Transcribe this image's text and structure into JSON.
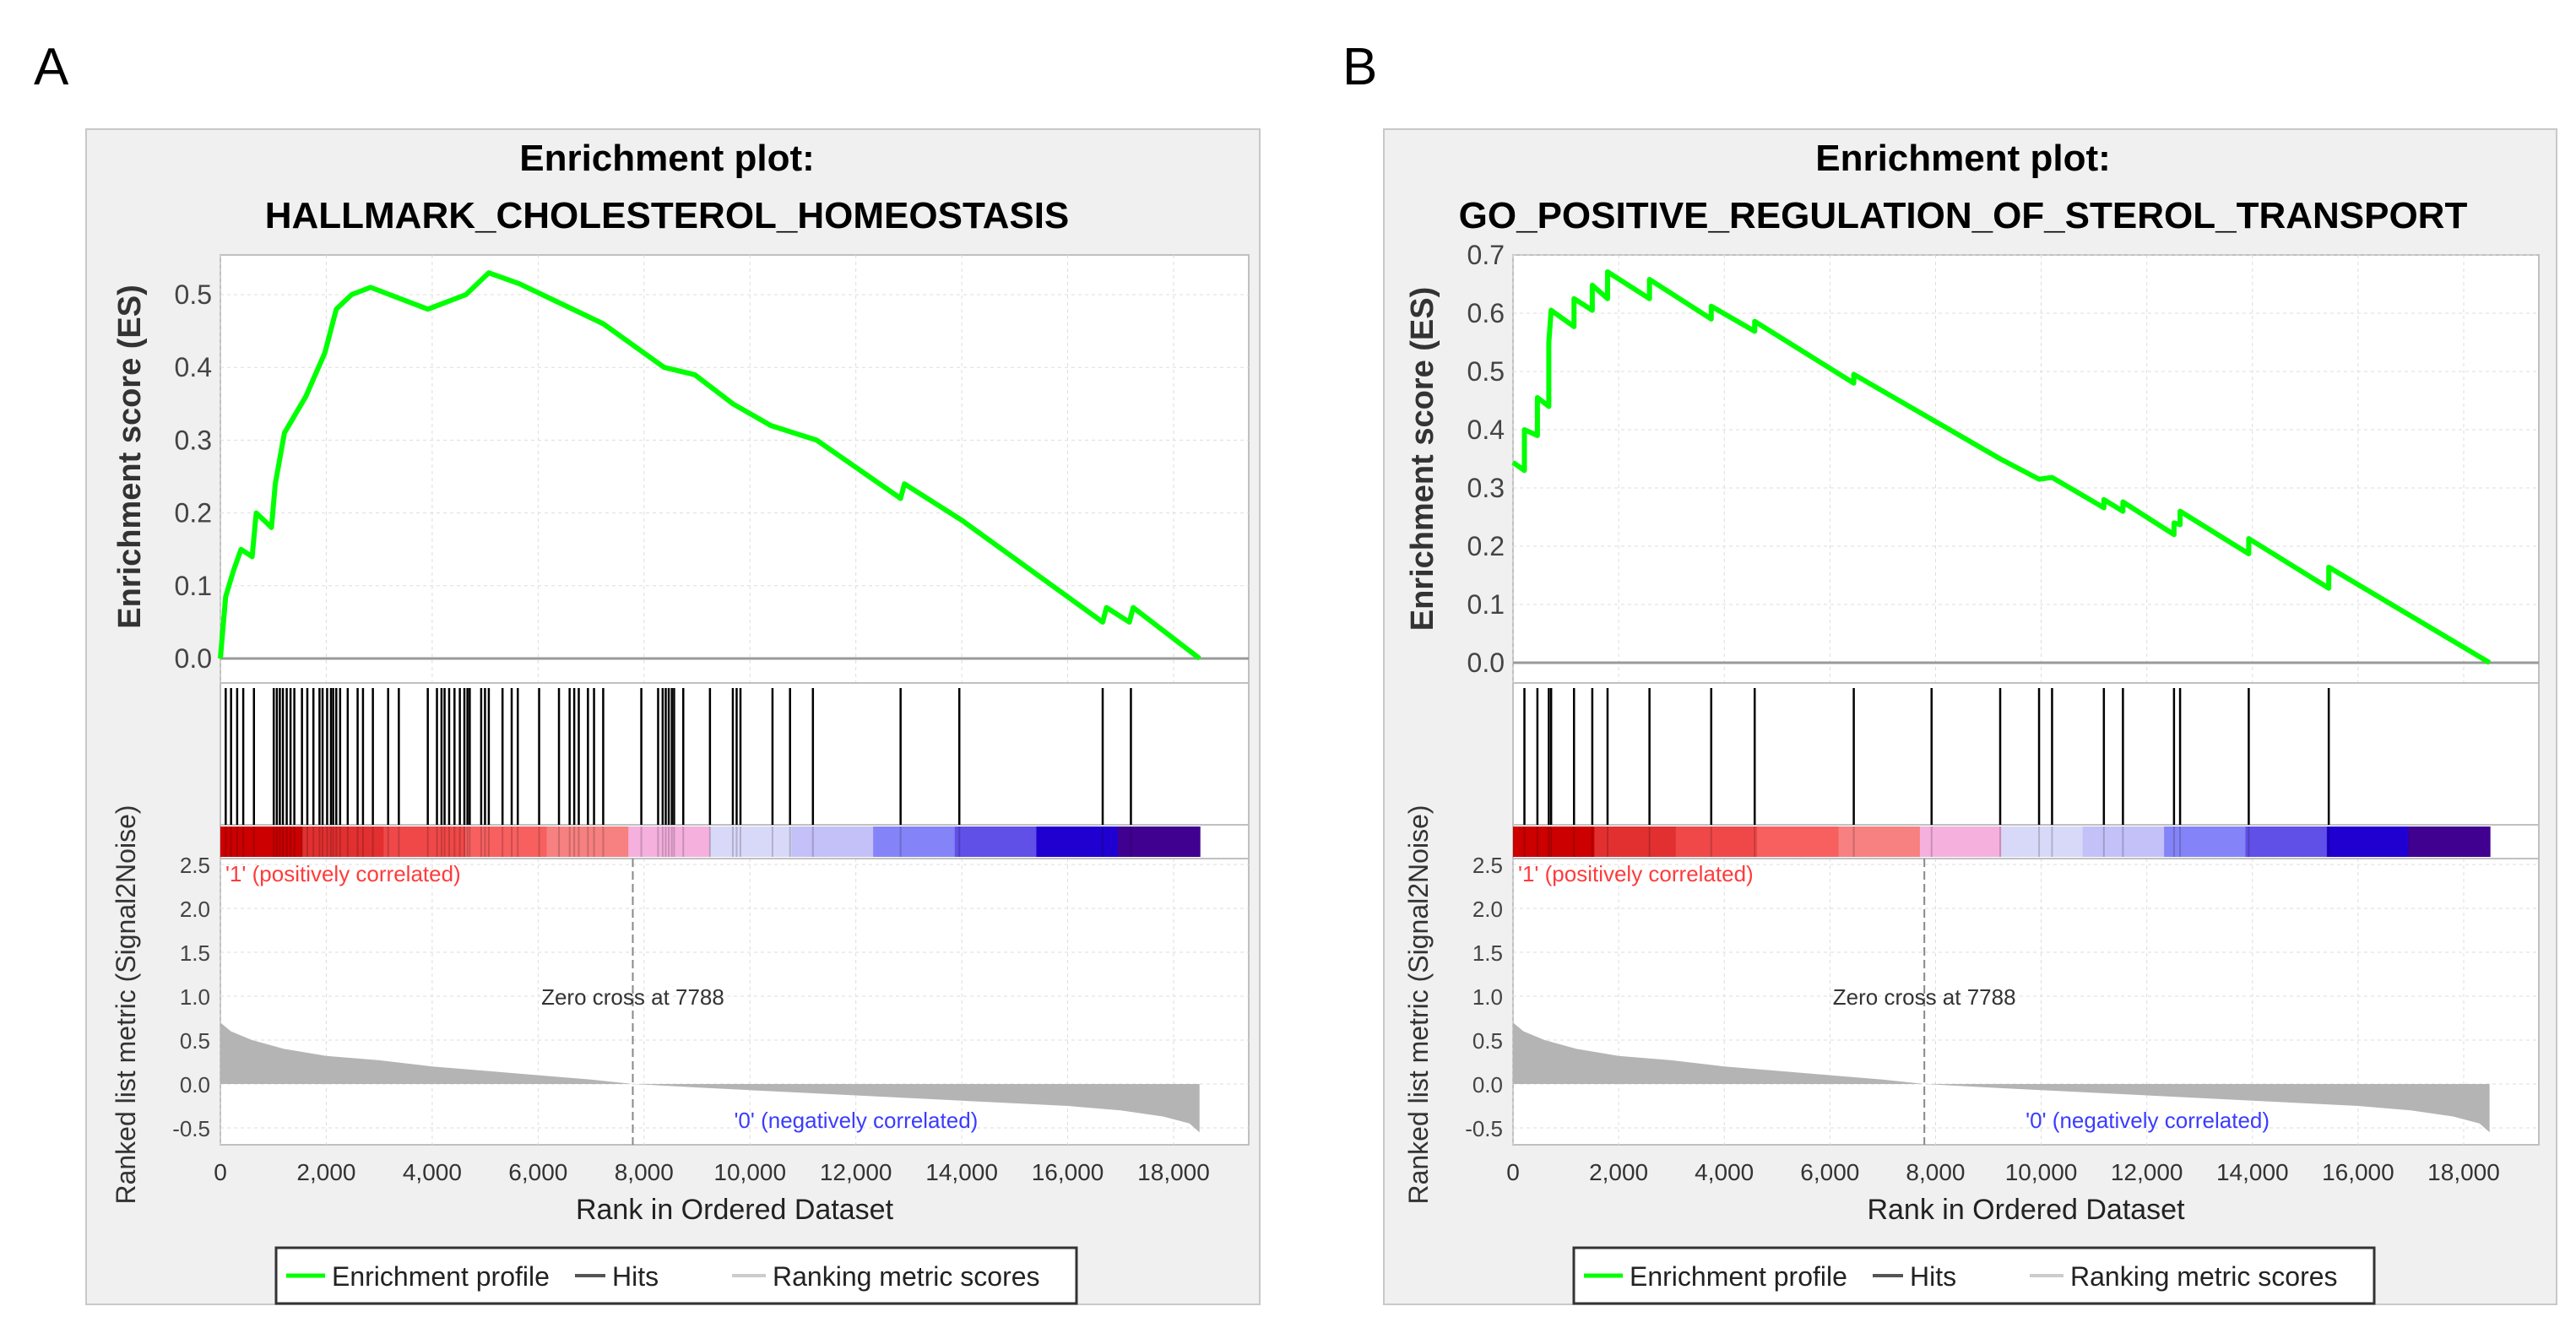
{
  "panels": [
    {
      "label": "A",
      "title_line1": "Enrichment plot:",
      "title_line2": "HALLMARK_CHOLESTEROL_HOMEOSTASIS",
      "legend": {
        "profile": "Enrichment profile",
        "hits": "Hits",
        "ranking": "Ranking metric scores"
      },
      "chart_data": {
        "type": "line",
        "title": "Enrichment plot: HALLMARK_CHOLESTEROL_HOMEOSTASIS",
        "xlabel": "Rank in Ordered Dataset",
        "ylabel_es": "Enrichment score (ES)",
        "ylabel_metric": "Ranked list metric (Signal2Noise)",
        "xlim": [
          0,
          19500
        ],
        "x_ticks": [
          "0",
          "2,000",
          "4,000",
          "6,000",
          "8,000",
          "10,000",
          "12,000",
          "14,000",
          "16,000",
          "18,000"
        ],
        "x_tick_values": [
          0,
          2000,
          4000,
          6000,
          8000,
          10000,
          12000,
          14000,
          16000,
          18000
        ],
        "es_ylim": [
          0,
          0.555
        ],
        "es_ticks": [
          "0.0",
          "0.1",
          "0.2",
          "0.3",
          "0.4",
          "0.5"
        ],
        "es_tick_values": [
          0,
          0.1,
          0.2,
          0.3,
          0.4,
          0.5
        ],
        "metric_ylim": [
          -0.6,
          2.6
        ],
        "metric_ticks": [
          "2.5",
          "2.0",
          "1.5",
          "1.0",
          "0.5",
          "0.0",
          "-0.5"
        ],
        "metric_tick_values": [
          2.5,
          2.0,
          1.5,
          1.0,
          0.5,
          0.0,
          -0.5
        ],
        "pos_label": "'1' (positively correlated)",
        "neg_label": "'0' (negatively correlated)",
        "zero_cross_label": "Zero cross at 7788",
        "zero_cross": 7788,
        "n_genes": 18490,
        "enrichment_profile": [
          [
            0,
            0
          ],
          [
            100,
            0.085
          ],
          [
            245,
            0.12
          ],
          [
            390,
            0.15
          ],
          [
            600,
            0.14
          ],
          [
            677,
            0.2
          ],
          [
            965,
            0.18
          ],
          [
            1037,
            0.24
          ],
          [
            1210,
            0.31
          ],
          [
            1613,
            0.36
          ],
          [
            1973,
            0.42
          ],
          [
            2189,
            0.48
          ],
          [
            2477,
            0.5
          ],
          [
            2837,
            0.51
          ],
          [
            3197,
            0.5
          ],
          [
            3917,
            0.48
          ],
          [
            4637,
            0.5
          ],
          [
            5069,
            0.53
          ],
          [
            5645,
            0.515
          ],
          [
            6077,
            0.5
          ],
          [
            7229,
            0.46
          ],
          [
            8381,
            0.4
          ],
          [
            8957,
            0.39
          ],
          [
            9677,
            0.35
          ],
          [
            10397,
            0.32
          ],
          [
            11261,
            0.3
          ],
          [
            12845,
            0.22
          ],
          [
            12917,
            0.24
          ],
          [
            14000,
            0.19
          ],
          [
            16661,
            0.05
          ],
          [
            16733,
            0.07
          ],
          [
            17165,
            0.05
          ],
          [
            17237,
            0.07
          ],
          [
            18490,
            0
          ]
        ],
        "hits": [
          101,
          202,
          317,
          432,
          634,
          1008,
          1066,
          1123,
          1181,
          1253,
          1325,
          1397,
          1541,
          1642,
          1757,
          1872,
          1930,
          2016,
          2088,
          2131,
          2189,
          2261,
          2405,
          2592,
          2693,
          2880,
          3168,
          3370,
          3917,
          4090,
          4176,
          4234,
          4320,
          4421,
          4522,
          4608,
          4666,
          4709,
          4925,
          4997,
          5069,
          5328,
          5501,
          5616,
          6019,
          6394,
          6595,
          6682,
          6768,
          6941,
          7056,
          7229,
          7949,
          8266,
          8352,
          8410,
          8467,
          8525,
          8568,
          8741,
          9245,
          9677,
          9749,
          9821,
          10426,
          10757,
          11189,
          12845,
          13954,
          16661,
          17194
        ],
        "ranked_metric": [
          [
            0,
            0.7
          ],
          [
            200,
            0.6
          ],
          [
            600,
            0.5
          ],
          [
            1200,
            0.4
          ],
          [
            2000,
            0.32
          ],
          [
            3000,
            0.27
          ],
          [
            4000,
            0.2
          ],
          [
            5000,
            0.15
          ],
          [
            6000,
            0.1
          ],
          [
            7000,
            0.05
          ],
          [
            7788,
            0
          ],
          [
            9000,
            -0.04
          ],
          [
            10000,
            -0.07
          ],
          [
            11000,
            -0.1
          ],
          [
            12000,
            -0.13
          ],
          [
            13000,
            -0.16
          ],
          [
            14000,
            -0.19
          ],
          [
            15000,
            -0.22
          ],
          [
            16000,
            -0.25
          ],
          [
            17000,
            -0.3
          ],
          [
            17800,
            -0.37
          ],
          [
            18300,
            -0.45
          ],
          [
            18490,
            -0.55
          ]
        ]
      }
    },
    {
      "label": "B",
      "title_line1": "Enrichment plot:",
      "title_line2": "GO_POSITIVE_REGULATION_OF_STEROL_TRANSPORT",
      "legend": {
        "profile": "Enrichment profile",
        "hits": "Hits",
        "ranking": "Ranking metric scores"
      },
      "chart_data": {
        "type": "line",
        "title": "Enrichment plot: GO_POSITIVE_REGULATION_OF_STEROL_TRANSPORT",
        "xlabel": "Rank in Ordered Dataset",
        "ylabel_es": "Enrichment score (ES)",
        "ylabel_metric": "Ranked list metric (Signal2Noise)",
        "xlim": [
          0,
          19500
        ],
        "x_ticks": [
          "0",
          "2,000",
          "4,000",
          "6,000",
          "8,000",
          "10,000",
          "12,000",
          "14,000",
          "16,000",
          "18,000"
        ],
        "x_tick_values": [
          0,
          2000,
          4000,
          6000,
          8000,
          10000,
          12000,
          14000,
          16000,
          18000
        ],
        "es_ylim": [
          0,
          0.7
        ],
        "es_ticks": [
          "0.0",
          "0.1",
          "0.2",
          "0.3",
          "0.4",
          "0.5",
          "0.6",
          "0.7"
        ],
        "es_tick_values": [
          0,
          0.1,
          0.2,
          0.3,
          0.4,
          0.5,
          0.6,
          0.7
        ],
        "metric_ylim": [
          -0.6,
          2.6
        ],
        "metric_ticks": [
          "2.5",
          "2.0",
          "1.5",
          "1.0",
          "0.5",
          "0.0",
          "-0.5"
        ],
        "metric_tick_values": [
          2.5,
          2.0,
          1.5,
          1.0,
          0.5,
          0.0,
          -0.5
        ],
        "pos_label": "'1' (positively correlated)",
        "neg_label": "'0' (negatively correlated)",
        "zero_cross_label": "Zero cross at 7788",
        "zero_cross": 7788,
        "n_genes": 18490,
        "enrichment_profile": [
          [
            0,
            0.344
          ],
          [
            216,
            0.33
          ],
          [
            216,
            0.4
          ],
          [
            462,
            0.39
          ],
          [
            462,
            0.455
          ],
          [
            678,
            0.44
          ],
          [
            678,
            0.55
          ],
          [
            722,
            0.605
          ],
          [
            1155,
            0.577
          ],
          [
            1155,
            0.625
          ],
          [
            1501,
            0.605
          ],
          [
            1501,
            0.648
          ],
          [
            1790,
            0.625
          ],
          [
            1790,
            0.671
          ],
          [
            2584,
            0.625
          ],
          [
            2584,
            0.658
          ],
          [
            3753,
            0.59
          ],
          [
            3753,
            0.612
          ],
          [
            4576,
            0.569
          ],
          [
            4576,
            0.586
          ],
          [
            6452,
            0.48
          ],
          [
            6452,
            0.495
          ],
          [
            9224,
            0.35
          ],
          [
            9960,
            0.315
          ],
          [
            10206,
            0.318
          ],
          [
            11187,
            0.266
          ],
          [
            11187,
            0.28
          ],
          [
            11548,
            0.26
          ],
          [
            11548,
            0.276
          ],
          [
            12515,
            0.22
          ],
          [
            12515,
            0.24
          ],
          [
            12630,
            0.237
          ],
          [
            12630,
            0.26
          ],
          [
            13930,
            0.187
          ],
          [
            13930,
            0.213
          ],
          [
            15445,
            0.128
          ],
          [
            15445,
            0.164
          ],
          [
            18490,
            0
          ]
        ],
        "hits": [
          216,
          462,
          678,
          722,
          1155,
          1501,
          1790,
          2584,
          3753,
          4576,
          6452,
          7925,
          9224,
          9960,
          10206,
          11187,
          11548,
          12515,
          12630,
          13930,
          15445
        ],
        "ranked_metric": [
          [
            0,
            0.7
          ],
          [
            200,
            0.6
          ],
          [
            600,
            0.5
          ],
          [
            1200,
            0.4
          ],
          [
            2000,
            0.32
          ],
          [
            3000,
            0.27
          ],
          [
            4000,
            0.2
          ],
          [
            5000,
            0.15
          ],
          [
            6000,
            0.1
          ],
          [
            7000,
            0.05
          ],
          [
            7788,
            0
          ],
          [
            9000,
            -0.04
          ],
          [
            10000,
            -0.07
          ],
          [
            11000,
            -0.1
          ],
          [
            12000,
            -0.13
          ],
          [
            13000,
            -0.16
          ],
          [
            14000,
            -0.19
          ],
          [
            15000,
            -0.22
          ],
          [
            16000,
            -0.25
          ],
          [
            17000,
            -0.3
          ],
          [
            17800,
            -0.37
          ],
          [
            18300,
            -0.45
          ],
          [
            18490,
            -0.55
          ]
        ]
      }
    }
  ],
  "colors": {
    "profile": "#00ff00",
    "hits": "#000000",
    "metric": "#b4b4b4",
    "pos_text": "#ff3b3b",
    "neg_text": "#3b3bff",
    "heatbar": [
      "#cc0000",
      "#e23030",
      "#f04848",
      "#f86060",
      "#f78080",
      "#f5b0de",
      "#d8d8f8",
      "#c4c0f8",
      "#8484f8",
      "#6050e8",
      "#2000d0",
      "#400090"
    ]
  }
}
